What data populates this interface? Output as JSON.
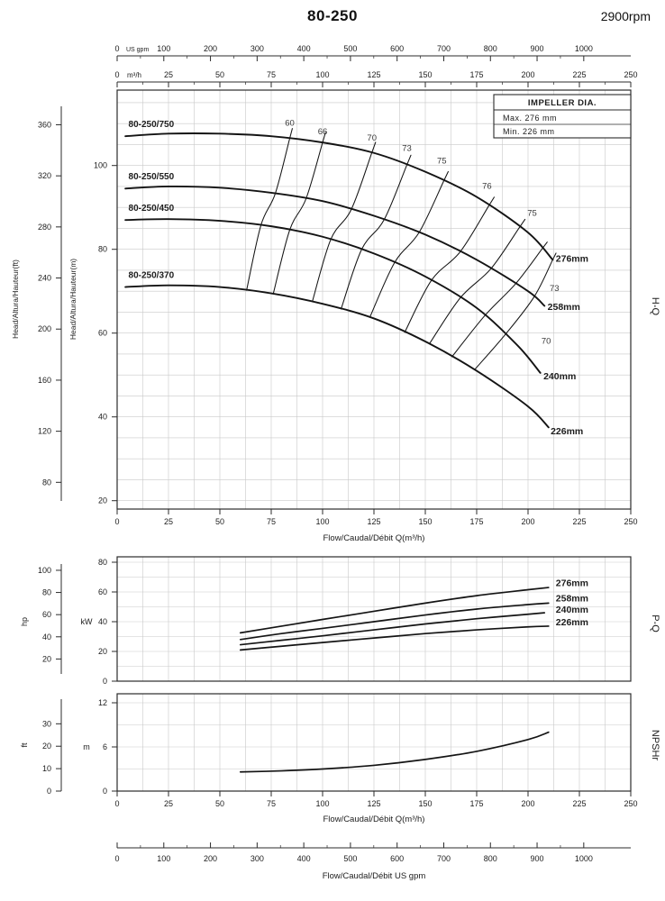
{
  "header": {
    "title": "80-250",
    "rpm": "2900rpm"
  },
  "colors": {
    "curve": "#141414",
    "grid": "#c9c9c9",
    "axis": "#2b2b2b",
    "text": "#1c1c1c",
    "eff_text": "#3a3a3a",
    "background": "#ffffff"
  },
  "top_axes": {
    "gpm": {
      "unit": "US gpm",
      "ticks": [
        0,
        100,
        200,
        300,
        400,
        500,
        600,
        700,
        800,
        900,
        1000
      ]
    },
    "m3h": {
      "unit": "m³/h",
      "ticks": [
        0,
        25,
        50,
        75,
        100,
        125,
        150,
        175,
        200,
        225,
        250
      ]
    }
  },
  "bottom_axis": {
    "title": "Flow/Caudal/Débit  US gpm",
    "ticks": [
      0,
      100,
      200,
      300,
      400,
      500,
      600,
      700,
      800,
      900,
      1000
    ]
  },
  "chart_data": [
    {
      "type": "line",
      "name": "H-Q",
      "right_label": "H-Q",
      "xlabel": "Flow/Caudal/Débit Q(m³/h)",
      "x_ticks": [
        0,
        25,
        50,
        75,
        100,
        125,
        150,
        175,
        200,
        225,
        250
      ],
      "xlim": [
        0,
        250
      ],
      "ylim_m": [
        18,
        118
      ],
      "y_inner": {
        "label": "Head/Altura/Hauteur(m)",
        "ticks": [
          20,
          40,
          60,
          80,
          100
        ]
      },
      "y_outer": {
        "label": "Head/Altura/Hauteur(ft)",
        "ticks": [
          80,
          120,
          160,
          200,
          240,
          280,
          320,
          360
        ]
      },
      "impeller_box": {
        "title": "IMPELLER DIA.",
        "rows": [
          "Max.  276 mm",
          "Min.  226 mm"
        ]
      },
      "series": [
        {
          "name": "276mm",
          "model": "80-250/750",
          "model_pos": [
            5.5,
            109.2
          ],
          "end_label_pos": [
            213.5,
            77
          ],
          "points": [
            [
              4,
              107
            ],
            [
              25,
              107.6
            ],
            [
              50,
              107.6
            ],
            [
              75,
              107
            ],
            [
              100,
              105.5
            ],
            [
              125,
              103
            ],
            [
              150,
              98.5
            ],
            [
              175,
              92.5
            ],
            [
              200,
              84
            ],
            [
              212,
              77.5
            ]
          ]
        },
        {
          "name": "258mm",
          "model": "80-250/550",
          "model_pos": [
            5.5,
            96.7
          ],
          "end_label_pos": [
            209.5,
            65.5
          ],
          "points": [
            [
              4,
              94.5
            ],
            [
              25,
              95
            ],
            [
              50,
              94.7
            ],
            [
              75,
              93.5
            ],
            [
              100,
              91.5
            ],
            [
              125,
              88
            ],
            [
              150,
              83.5
            ],
            [
              175,
              77.5
            ],
            [
              200,
              70
            ],
            [
              208,
              66.5
            ]
          ]
        },
        {
          "name": "240mm",
          "model": "80-250/450",
          "model_pos": [
            5.5,
            89.2
          ],
          "end_label_pos": [
            207.5,
            49
          ],
          "points": [
            [
              4,
              87
            ],
            [
              25,
              87.2
            ],
            [
              50,
              86.8
            ],
            [
              75,
              85.5
            ],
            [
              100,
              83
            ],
            [
              125,
              79
            ],
            [
              150,
              73.5
            ],
            [
              175,
              66
            ],
            [
              195,
              57
            ],
            [
              206,
              50.5
            ]
          ]
        },
        {
          "name": "226mm",
          "model": "80-250/370",
          "model_pos": [
            5.5,
            73.2
          ],
          "end_label_pos": [
            211,
            35.8
          ],
          "points": [
            [
              4,
              71
            ],
            [
              25,
              71.4
            ],
            [
              50,
              71
            ],
            [
              75,
              69.5
            ],
            [
              100,
              67
            ],
            [
              125,
              63.5
            ],
            [
              150,
              58
            ],
            [
              175,
              51
            ],
            [
              200,
              42.5
            ],
            [
              210,
              37.5
            ]
          ]
        }
      ],
      "efficiency_lines": [
        {
          "value": "60",
          "crossings_q": [
            84,
            77,
            70,
            63
          ],
          "label": [
            84,
            109.5,
            "middle"
          ]
        },
        {
          "value": "66",
          "crossings_q": [
            100,
            92,
            84,
            76
          ],
          "label": [
            100,
            107.5,
            "middle"
          ]
        },
        {
          "value": "70",
          "crossings_q": [
            124,
            114,
            104,
            95
          ],
          "label": [
            124,
            106,
            "middle"
          ]
        },
        {
          "value": "73",
          "crossings_q": [
            141,
            130,
            119,
            109
          ],
          "label": [
            141,
            103.5,
            "middle"
          ]
        },
        {
          "value": "75",
          "crossings_q": [
            159,
            147,
            135,
            123
          ],
          "label": [
            158,
            100.5,
            "middle"
          ]
        },
        {
          "value": "76",
          "crossings_q": [
            181,
            167,
            153,
            140
          ],
          "label": [
            180,
            94.5,
            "middle"
          ]
        },
        {
          "value": "75",
          "crossings_q": [
            196,
            182,
            167,
            152
          ],
          "label": [
            202,
            88,
            "middle"
          ]
        },
        {
          "value": "73",
          "crossings_q": [
            207,
            194,
            179,
            163
          ],
          "label": [
            210.5,
            70,
            "start"
          ]
        },
        {
          "value": "70",
          "crossings_q": [
            212,
            203,
            189,
            174
          ],
          "label": [
            206.5,
            57.5,
            "start"
          ]
        }
      ]
    },
    {
      "type": "line",
      "name": "P-Q",
      "right_label": "P-Q",
      "y_inner": {
        "label": "kW",
        "ticks": [
          0,
          20,
          40,
          60,
          80
        ]
      },
      "y_outer": {
        "label": "hp",
        "ticks": [
          20,
          40,
          60,
          80,
          100
        ]
      },
      "series": [
        {
          "name": "276mm",
          "end_label_pos": [
            213.5,
            64
          ],
          "points": [
            [
              60,
              32.5
            ],
            [
              80,
              37
            ],
            [
              100,
              41.5
            ],
            [
              125,
              47
            ],
            [
              150,
              52.5
            ],
            [
              175,
              57.5
            ],
            [
              200,
              61.5
            ],
            [
              210,
              63
            ]
          ]
        },
        {
          "name": "258mm",
          "end_label_pos": [
            213.5,
            53.5
          ],
          "points": [
            [
              60,
              28
            ],
            [
              80,
              32
            ],
            [
              100,
              35.5
            ],
            [
              125,
              40
            ],
            [
              150,
              44.5
            ],
            [
              175,
              48.5
            ],
            [
              200,
              51.5
            ],
            [
              210,
              52.5
            ]
          ]
        },
        {
          "name": "240mm",
          "end_label_pos": [
            213.5,
            46
          ],
          "points": [
            [
              60,
              24.5
            ],
            [
              80,
              27.5
            ],
            [
              100,
              30.5
            ],
            [
              125,
              34.5
            ],
            [
              150,
              38.5
            ],
            [
              175,
              42
            ],
            [
              200,
              45
            ],
            [
              208,
              46
            ]
          ]
        },
        {
          "name": "226mm",
          "end_label_pos": [
            213.5,
            37.5
          ],
          "points": [
            [
              60,
              21
            ],
            [
              80,
              23.5
            ],
            [
              100,
              26
            ],
            [
              125,
              29
            ],
            [
              150,
              32
            ],
            [
              175,
              34.5
            ],
            [
              200,
              36.5
            ],
            [
              210,
              37
            ]
          ]
        }
      ]
    },
    {
      "type": "line",
      "name": "NPSHr",
      "right_label": "NPSHr",
      "xlabel": "Flow/Caudal/Débit Q(m³/h)",
      "x_ticks": [
        0,
        25,
        50,
        75,
        100,
        125,
        150,
        175,
        200,
        225,
        250
      ],
      "y_inner": {
        "label": "m",
        "ticks": [
          0,
          6,
          12
        ]
      },
      "y_outer": {
        "label": "ft",
        "ticks": [
          0,
          10,
          20,
          30
        ]
      },
      "series": [
        {
          "name": "NPSHr",
          "points": [
            [
              60,
              2.6
            ],
            [
              80,
              2.75
            ],
            [
              100,
              3.0
            ],
            [
              125,
              3.5
            ],
            [
              150,
              4.3
            ],
            [
              175,
              5.4
            ],
            [
              200,
              7.0
            ],
            [
              210,
              8.0
            ]
          ]
        }
      ]
    }
  ]
}
